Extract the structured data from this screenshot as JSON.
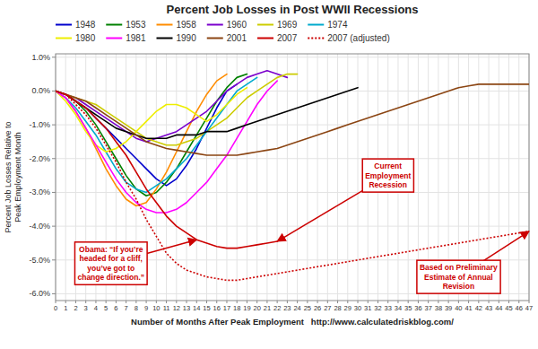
{
  "chart_data": {
    "type": "line",
    "title": "Percent Job Losses in Post WWII Recessions",
    "xlabel": "Number of Months After Peak Employment   http://www.calculatedriskblog.com/",
    "ylabel": "Percent Job Losses Relative to\nPeak Employment Month",
    "x": [
      0,
      1,
      2,
      3,
      4,
      5,
      6,
      7,
      8,
      9,
      10,
      11,
      12,
      13,
      14,
      15,
      16,
      17,
      18,
      19,
      20,
      21,
      22,
      23,
      24,
      25,
      26,
      27,
      28,
      29,
      30,
      31,
      32,
      33,
      34,
      35,
      36,
      37,
      38,
      39,
      40,
      41,
      42,
      43,
      44,
      45,
      46,
      47
    ],
    "xlim": [
      0,
      47
    ],
    "xticks": [
      0,
      1,
      2,
      3,
      4,
      5,
      6,
      7,
      8,
      9,
      10,
      11,
      12,
      13,
      14,
      15,
      16,
      17,
      18,
      19,
      20,
      21,
      22,
      23,
      24,
      25,
      26,
      27,
      28,
      29,
      30,
      31,
      32,
      33,
      34,
      35,
      36,
      37,
      38,
      39,
      40,
      41,
      42,
      43,
      44,
      45,
      46,
      47
    ],
    "ylim": [
      -6.2,
      1.1
    ],
    "yticks": [
      {
        "value": 1.0,
        "label": "1.0%"
      },
      {
        "value": 0.0,
        "label": "0.0%"
      },
      {
        "value": -1.0,
        "label": "-1.0%"
      },
      {
        "value": -2.0,
        "label": "-2.0%"
      },
      {
        "value": -3.0,
        "label": "-3.0%"
      },
      {
        "value": -4.0,
        "label": "-4.0%"
      },
      {
        "value": -5.0,
        "label": "-5.0%"
      },
      {
        "value": -6.0,
        "label": "-6.0%"
      }
    ],
    "grid": true,
    "legend": "top",
    "series": [
      {
        "name": "1948",
        "color": "#0000cc",
        "line_style": "solid",
        "values": [
          0,
          -0.1,
          -0.3,
          -0.5,
          -0.8,
          -1.1,
          -1.4,
          -1.7,
          -2.0,
          -2.3,
          -2.6,
          -2.8,
          -2.6,
          -2.2,
          -1.7,
          -1.1,
          -0.5,
          0.0,
          0.2,
          null,
          null,
          null,
          null,
          null,
          null,
          null,
          null,
          null,
          null,
          null,
          null,
          null,
          null,
          null,
          null,
          null,
          null,
          null,
          null,
          null,
          null,
          null,
          null,
          null,
          null,
          null,
          null,
          null
        ]
      },
      {
        "name": "1953",
        "color": "#008000",
        "line_style": "solid",
        "values": [
          0,
          -0.1,
          -0.3,
          -0.6,
          -1.0,
          -1.5,
          -2.0,
          -2.5,
          -2.9,
          -3.1,
          -3.0,
          -2.7,
          -2.3,
          -1.8,
          -1.3,
          -0.8,
          -0.3,
          0.1,
          0.4,
          0.5,
          null,
          null,
          null,
          null,
          null,
          null,
          null,
          null,
          null,
          null,
          null,
          null,
          null,
          null,
          null,
          null,
          null,
          null,
          null,
          null,
          null,
          null,
          null,
          null,
          null,
          null,
          null,
          null
        ]
      },
      {
        "name": "1958",
        "color": "#ff8c00",
        "line_style": "solid",
        "values": [
          0,
          -0.2,
          -0.6,
          -1.1,
          -1.7,
          -2.3,
          -2.8,
          -3.2,
          -3.4,
          -3.3,
          -2.9,
          -2.4,
          -1.8,
          -1.2,
          -0.6,
          -0.1,
          0.3,
          0.5,
          null,
          null,
          null,
          null,
          null,
          null,
          null,
          null,
          null,
          null,
          null,
          null,
          null,
          null,
          null,
          null,
          null,
          null,
          null,
          null,
          null,
          null,
          null,
          null,
          null,
          null,
          null,
          null,
          null,
          null
        ]
      },
      {
        "name": "1960",
        "color": "#7B00CC",
        "line_style": "solid",
        "values": [
          0,
          -0.1,
          -0.2,
          -0.4,
          -0.6,
          -0.8,
          -1.0,
          -1.2,
          -1.4,
          -1.5,
          -1.4,
          -1.3,
          -1.2,
          -1.0,
          -0.8,
          -0.6,
          -0.3,
          0.0,
          0.2,
          0.4,
          0.5,
          0.6,
          0.5,
          0.4,
          null,
          null,
          null,
          null,
          null,
          null,
          null,
          null,
          null,
          null,
          null,
          null,
          null,
          null,
          null,
          null,
          null,
          null,
          null,
          null,
          null,
          null,
          null,
          null
        ]
      },
      {
        "name": "1969",
        "color": "#cccc00",
        "line_style": "solid",
        "values": [
          0,
          -0.1,
          -0.2,
          -0.3,
          -0.4,
          -0.6,
          -0.8,
          -1.0,
          -1.2,
          -1.4,
          -1.5,
          -1.6,
          -1.6,
          -1.5,
          -1.4,
          -1.2,
          -1.0,
          -0.8,
          -0.5,
          -0.2,
          0.0,
          0.2,
          0.4,
          0.5,
          0.5,
          null,
          null,
          null,
          null,
          null,
          null,
          null,
          null,
          null,
          null,
          null,
          null,
          null,
          null,
          null,
          null,
          null,
          null,
          null,
          null,
          null,
          null,
          null
        ]
      },
      {
        "name": "1974",
        "color": "#00aacc",
        "line_style": "solid",
        "values": [
          0,
          -0.2,
          -0.5,
          -0.9,
          -1.3,
          -1.8,
          -2.3,
          -2.7,
          -2.9,
          -3.0,
          -2.8,
          -2.6,
          -2.3,
          -2.0,
          -1.6,
          -1.2,
          -0.8,
          -0.4,
          0.0,
          0.2,
          0.4,
          null,
          null,
          null,
          null,
          null,
          null,
          null,
          null,
          null,
          null,
          null,
          null,
          null,
          null,
          null,
          null,
          null,
          null,
          null,
          null,
          null,
          null,
          null,
          null,
          null,
          null,
          null
        ]
      },
      {
        "name": "1980",
        "color": "#eeee00",
        "line_style": "solid",
        "values": [
          0,
          -0.3,
          -0.7,
          -1.2,
          -1.6,
          -1.8,
          -1.7,
          -1.5,
          -1.2,
          -0.9,
          -0.6,
          -0.4,
          -0.4,
          -0.5,
          -0.7,
          -0.9,
          -0.7,
          -0.4,
          -0.1,
          0.1,
          null,
          null,
          null,
          null,
          null,
          null,
          null,
          null,
          null,
          null,
          null,
          null,
          null,
          null,
          null,
          null,
          null,
          null,
          null,
          null,
          null,
          null,
          null,
          null,
          null,
          null,
          null,
          null
        ]
      },
      {
        "name": "1981",
        "color": "#ff00ff",
        "line_style": "solid",
        "values": [
          0,
          -0.2,
          -0.6,
          -1.1,
          -1.6,
          -2.1,
          -2.6,
          -3.0,
          -3.3,
          -3.5,
          -3.6,
          -3.6,
          -3.5,
          -3.3,
          -3.0,
          -2.7,
          -2.3,
          -1.9,
          -1.4,
          -0.9,
          -0.4,
          0.0,
          0.3,
          null,
          null,
          null,
          null,
          null,
          null,
          null,
          null,
          null,
          null,
          null,
          null,
          null,
          null,
          null,
          null,
          null,
          null,
          null,
          null,
          null,
          null,
          null,
          null,
          null
        ]
      },
      {
        "name": "1990",
        "color": "#000000",
        "line_style": "solid",
        "values": [
          0,
          -0.1,
          -0.3,
          -0.5,
          -0.7,
          -0.9,
          -1.1,
          -1.2,
          -1.3,
          -1.4,
          -1.4,
          -1.4,
          -1.3,
          -1.3,
          -1.3,
          -1.2,
          -1.2,
          -1.2,
          -1.1,
          -1.0,
          -0.9,
          -0.8,
          -0.7,
          -0.6,
          -0.5,
          -0.4,
          -0.3,
          -0.2,
          -0.1,
          0.0,
          0.1,
          null,
          null,
          null,
          null,
          null,
          null,
          null,
          null,
          null,
          null,
          null,
          null,
          null,
          null,
          null,
          null,
          null
        ]
      },
      {
        "name": "2001",
        "color": "#8B4513",
        "line_style": "solid",
        "values": [
          0,
          -0.1,
          -0.2,
          -0.3,
          -0.5,
          -0.7,
          -0.9,
          -1.1,
          -1.3,
          -1.5,
          -1.6,
          -1.7,
          -1.75,
          -1.8,
          -1.85,
          -1.9,
          -1.9,
          -1.9,
          -1.9,
          -1.85,
          -1.8,
          -1.75,
          -1.7,
          -1.6,
          -1.5,
          -1.4,
          -1.3,
          -1.2,
          -1.1,
          -1.0,
          -0.9,
          -0.8,
          -0.7,
          -0.6,
          -0.5,
          -0.4,
          -0.3,
          -0.2,
          -0.1,
          0.0,
          0.1,
          0.15,
          0.2,
          0.2,
          0.2,
          0.2,
          0.2,
          0.2
        ]
      },
      {
        "name": "2007",
        "color": "#cc0000",
        "line_style": "solid",
        "values": [
          0,
          -0.1,
          -0.3,
          -0.5,
          -0.8,
          -1.1,
          -1.5,
          -1.9,
          -2.4,
          -2.9,
          -3.3,
          -3.7,
          -4.0,
          -4.2,
          -4.4,
          -4.5,
          -4.6,
          -4.65,
          -4.65,
          -4.6,
          -4.55,
          -4.5,
          -4.45,
          null,
          null,
          null,
          null,
          null,
          null,
          null,
          null,
          null,
          null,
          null,
          null,
          null,
          null,
          null,
          null,
          null,
          null,
          null,
          null,
          null,
          null,
          null,
          null,
          null
        ]
      },
      {
        "name": "2007 (adjusted)",
        "color": "#cc0000",
        "line_style": "dotted",
        "values": [
          0,
          -0.1,
          -0.4,
          -0.7,
          -1.1,
          -1.6,
          -2.1,
          -2.7,
          -3.2,
          -3.8,
          -4.3,
          -4.8,
          -5.1,
          -5.3,
          -5.4,
          -5.5,
          -5.55,
          -5.6,
          -5.6,
          -5.55,
          -5.5,
          -5.45,
          -5.4,
          -5.35,
          -5.3,
          -5.25,
          -5.2,
          -5.15,
          -5.1,
          -5.05,
          -5.0,
          -4.95,
          -4.9,
          -4.85,
          -4.8,
          -4.75,
          -4.7,
          -4.65,
          -4.6,
          -4.55,
          -4.5,
          -4.45,
          -4.4,
          -4.35,
          -4.3,
          -4.25,
          -4.2,
          -4.15
        ]
      }
    ],
    "annotations": [
      {
        "text": "Current\nEmployment\nRecession",
        "x": 22,
        "y": -4.45,
        "text_x": 33,
        "text_y": -2.5
      },
      {
        "text": "Based on Preliminary\nEstimate of Annual\nRevision",
        "x": 47,
        "y": -4.15,
        "text_x": 40,
        "text_y": -5.5
      },
      {
        "text": "Obama: “If you’re\nheaded for a cliff,\nyou’ve got to\nchange direction.”",
        "x": 14,
        "y": -4.4,
        "text_x": 5.5,
        "text_y": -5.1
      }
    ]
  }
}
